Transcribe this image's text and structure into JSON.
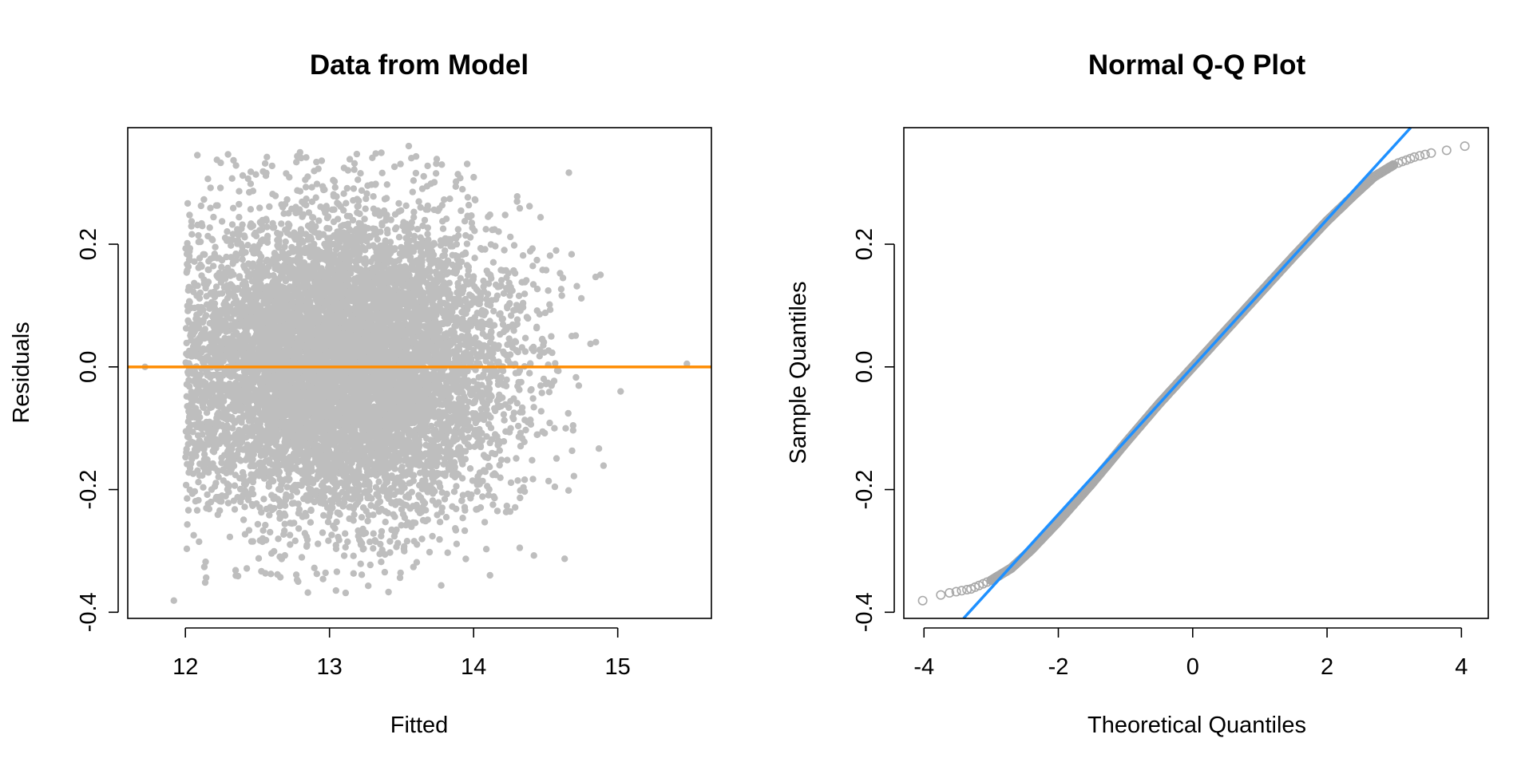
{
  "chart_data": [
    {
      "type": "scatter",
      "title": "Data from Model",
      "xlabel": "Fitted",
      "ylabel": "Residuals",
      "xlim": [
        11.6,
        15.65
      ],
      "ylim": [
        -0.41,
        0.39
      ],
      "xticks": [
        12,
        13,
        14,
        15
      ],
      "yticks": [
        -0.4,
        -0.2,
        0.0,
        0.2
      ],
      "xtick_labels": [
        "12",
        "13",
        "14",
        "15"
      ],
      "ytick_labels": [
        "-0.4",
        "-0.2",
        "0.0",
        "0.2"
      ],
      "grid": false,
      "point_color": "#BEBEBE",
      "reference_line": {
        "y": 0,
        "color": "#FF8C00"
      },
      "point_cloud": {
        "approx_count": 9000,
        "fitted_center": 13.1,
        "fitted_spread_sd": 0.55,
        "residual_sd": 0.12
      },
      "outlier_points": [
        {
          "x": 11.72,
          "y": 0.0
        },
        {
          "x": 11.92,
          "y": -0.381
        },
        {
          "x": 15.48,
          "y": 0.005
        },
        {
          "x": 15.02,
          "y": -0.04
        },
        {
          "x": 14.88,
          "y": 0.15
        },
        {
          "x": 14.62,
          "y": 0.145
        },
        {
          "x": 14.32,
          "y": -0.295
        },
        {
          "x": 13.55,
          "y": 0.36
        },
        {
          "x": 12.85,
          "y": -0.368
        }
      ]
    },
    {
      "type": "scatter",
      "title": "Normal Q-Q Plot",
      "xlabel": "Theoretical Quantiles",
      "ylabel": "Sample Quantiles",
      "xlim": [
        -4.3,
        4.4
      ],
      "ylim": [
        -0.41,
        0.39
      ],
      "xticks": [
        -4,
        -2,
        0,
        2,
        4
      ],
      "yticks": [
        -0.4,
        -0.2,
        0.0,
        0.2
      ],
      "xtick_labels": [
        "-4",
        "-2",
        "0",
        "2",
        "4"
      ],
      "ytick_labels": [
        "-0.4",
        "-0.2",
        "0.0",
        "0.2"
      ],
      "grid": false,
      "point_color": "#A9A9A9",
      "reference_line": {
        "slope": 0.1202,
        "intercept": 0.0,
        "color": "#1E90FF"
      },
      "quantile_curve": [
        {
          "x": -4.02,
          "y": -0.381
        },
        {
          "x": -3.7,
          "y": -0.37
        },
        {
          "x": -3.3,
          "y": -0.362
        },
        {
          "x": -3.0,
          "y": -0.348
        },
        {
          "x": -2.7,
          "y": -0.328
        },
        {
          "x": -2.4,
          "y": -0.298
        },
        {
          "x": -2.0,
          "y": -0.252
        },
        {
          "x": -1.5,
          "y": -0.19
        },
        {
          "x": -1.0,
          "y": -0.124
        },
        {
          "x": -0.5,
          "y": -0.06
        },
        {
          "x": 0.0,
          "y": 0.0
        },
        {
          "x": 0.5,
          "y": 0.06
        },
        {
          "x": 1.0,
          "y": 0.12
        },
        {
          "x": 1.5,
          "y": 0.18
        },
        {
          "x": 2.0,
          "y": 0.238
        },
        {
          "x": 2.4,
          "y": 0.28
        },
        {
          "x": 2.7,
          "y": 0.31
        },
        {
          "x": 3.0,
          "y": 0.33
        },
        {
          "x": 3.3,
          "y": 0.342
        },
        {
          "x": 3.6,
          "y": 0.35
        },
        {
          "x": 3.78,
          "y": 0.353
        },
        {
          "x": 4.05,
          "y": 0.36
        }
      ]
    }
  ]
}
